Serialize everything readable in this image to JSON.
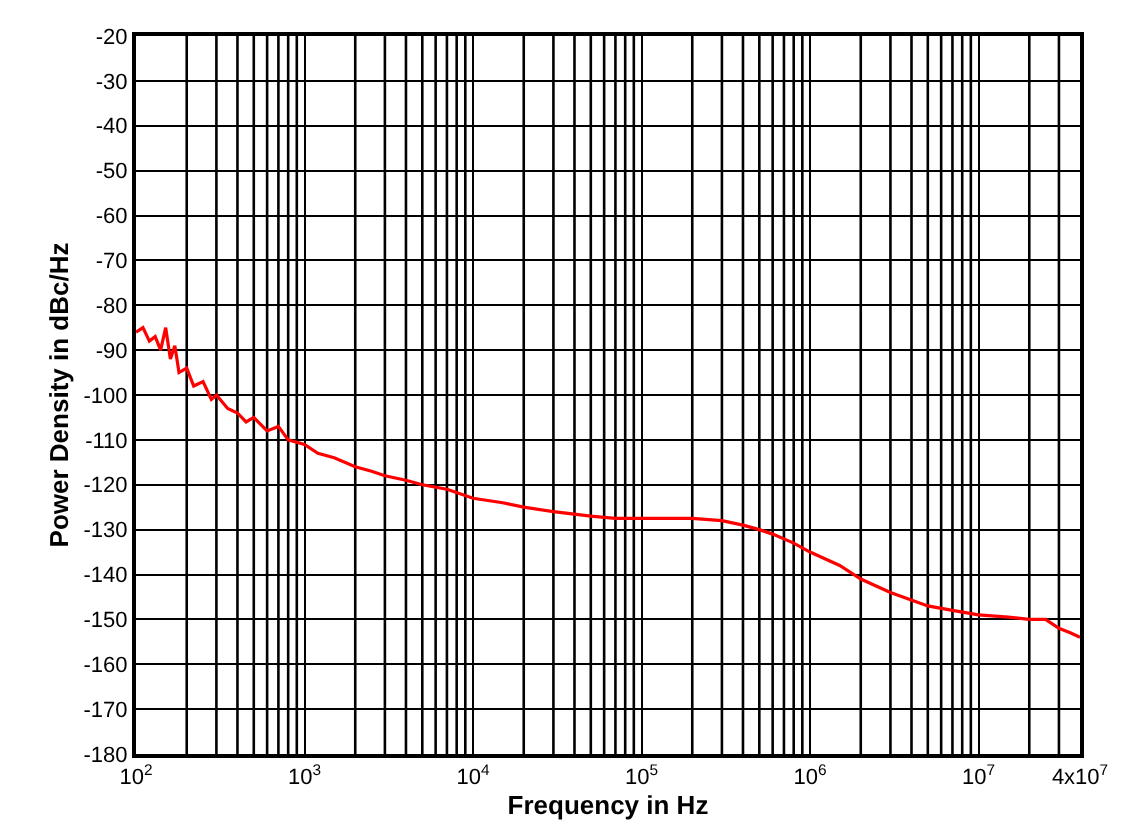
{
  "chart_data": {
    "type": "line",
    "xlabel": "Frequency in Hz",
    "ylabel": "Power Density in dBc/Hz",
    "log": "x",
    "grid": true,
    "marker": "none",
    "line_style": "solid",
    "x": [
      100,
      110,
      120,
      130,
      140,
      150,
      160,
      170,
      180,
      200,
      220,
      250,
      280,
      300,
      350,
      400,
      450,
      500,
      600,
      700,
      800,
      1000,
      1200,
      1500,
      2000,
      2500,
      3000,
      4000,
      5000,
      7000,
      10000,
      15000,
      20000,
      30000,
      50000,
      70000,
      100000,
      150000,
      200000,
      300000,
      400000,
      500000,
      600000,
      800000,
      1000000,
      1500000,
      2000000,
      3000000,
      5000000,
      7000000,
      10000000,
      15000000,
      20000000,
      25000000,
      30000000,
      35000000,
      40000000
    ],
    "series": [
      {
        "color": "#ff0000",
        "values": [
          -86,
          -85,
          -88,
          -87,
          -90,
          -85,
          -92,
          -89,
          -95,
          -94,
          -98,
          -97,
          -101,
          -100,
          -103,
          -104,
          -106,
          -105,
          -108,
          -107,
          -110,
          -111,
          -113,
          -114,
          -116,
          -117,
          -118,
          -119,
          -120,
          -121,
          -123,
          -124,
          -125,
          -126,
          -127,
          -127.5,
          -127.5,
          -127.5,
          -127.5,
          -128,
          -129,
          -130,
          -131,
          -133,
          -135,
          -138,
          -141,
          -144,
          -147,
          -148,
          -149,
          -149.5,
          -150,
          -150,
          -152,
          -153,
          -154
        ]
      }
    ],
    "xlim": [
      100,
      40000000
    ],
    "ylim": [
      -180,
      -20
    ],
    "xticks": [
      {
        "value": 100,
        "label": "10$^{2}$"
      },
      {
        "value": 1000,
        "label": "10$^{3}$"
      },
      {
        "value": 10000,
        "label": "10$^{4}$"
      },
      {
        "value": 100000,
        "label": "10$^{5}$"
      },
      {
        "value": 1000000,
        "label": "10$^{6}$"
      },
      {
        "value": 10000000,
        "label": "10$^{7}$"
      },
      {
        "value": 40000000,
        "label": "4x10$^{7}$"
      }
    ],
    "yticks": [
      -180,
      -170,
      -160,
      -150,
      -140,
      -130,
      -120,
      -110,
      -100,
      -90,
      -80,
      -70,
      -60,
      -50,
      -40,
      -30,
      -20
    ]
  }
}
